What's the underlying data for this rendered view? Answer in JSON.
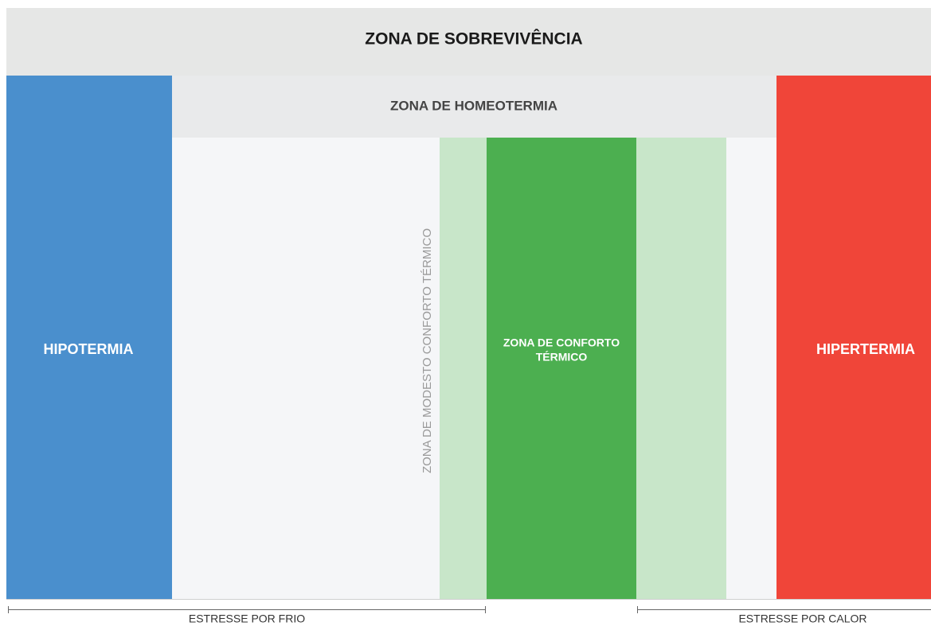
{
  "survival_zone": "ZONA DE SOBREVIVÊNCIA",
  "homeothermy_zone": "ZONA DE HOMEOTERMIA",
  "hypothermia": "HIPOTERMIA",
  "hyperthermia": "HIPERTERMIA",
  "modest_comfort_zone": "ZONA DE MODESTO CONFORTO TÉRMICO",
  "comfort_zone": [
    "ZONA DE CONFORTO",
    "TÉRMICO"
  ],
  "cold_stress": "ESTRESSE POR FRIO",
  "heat_stress": "ESTRESSE POR CALOR"
}
